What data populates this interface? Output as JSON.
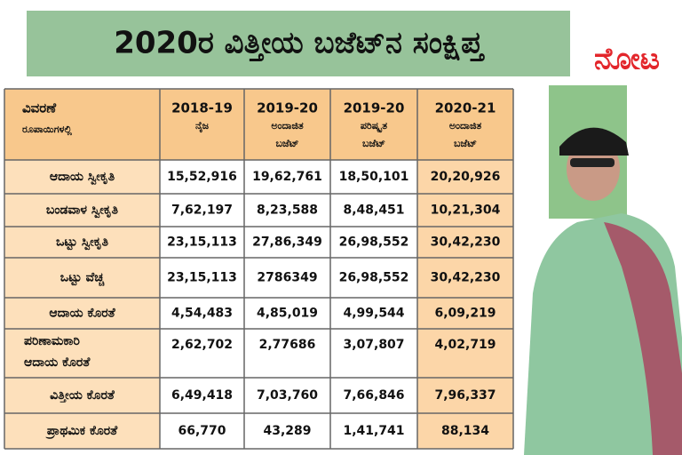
{
  "header": {
    "title": "2020ರ ವಿತ್ತೀಯ ಬಜೆಟ್‌ನ ಸಂಕ್ಷಿಪ್ತ",
    "logo": "ನೋಟ"
  },
  "table": {
    "columns": [
      {
        "lines": [
          "ವಿವರಣೆ",
          "ರೂಪಾಯಿಗಳಲ್ಲಿ"
        ]
      },
      {
        "lines": [
          "2018-19",
          "ನೈಜ"
        ]
      },
      {
        "lines": [
          "2019-20",
          "ಅಂದಾಜಿತ",
          "ಬಜೆಟ್"
        ]
      },
      {
        "lines": [
          "2019-20",
          "ಪರಿಷ್ಕೃತ",
          "ಬಜೆಟ್"
        ]
      },
      {
        "lines": [
          "2020-21",
          "ಅಂದಾಜಿತ",
          "ಬಜೆಟ್"
        ]
      }
    ],
    "rows": [
      {
        "label": [
          "ಆದಾಯ ಸ್ವೀಕೃತಿ"
        ],
        "values": [
          "15,52,916",
          "19,62,761",
          "18,50,101",
          "20,20,926"
        ]
      },
      {
        "label": [
          "ಬಂಡವಾಳ ಸ್ವೀಕೃತಿ"
        ],
        "values": [
          "7,62,197",
          "8,23,588",
          "8,48,451",
          "10,21,304"
        ]
      },
      {
        "label": [
          "ಒಟ್ಟು ಸ್ವೀಕೃತಿ"
        ],
        "values": [
          "23,15,113",
          "27,86,349",
          "26,98,552",
          "30,42,230"
        ]
      },
      {
        "label": [
          "ಒಟ್ಟು ವೆಚ್ಚ"
        ],
        "values": [
          "23,15,113",
          "2786349",
          "26,98,552",
          "30,42,230"
        ]
      },
      {
        "label": [
          "ಆದಾಯ ಕೊರತೆ"
        ],
        "values": [
          "4,54,483",
          "4,85,019",
          "4,99,544",
          "6,09,219"
        ]
      },
      {
        "label": [
          "ಪರಿಣಾಮಕಾರಿ",
          "ಆದಾಯ ಕೊರತೆ"
        ],
        "values": [
          "2,62,702",
          "2,77686",
          "3,07,807",
          "4,02,719"
        ]
      },
      {
        "label": [
          "ವಿತ್ತೀಯ ಕೊರತೆ"
        ],
        "values": [
          "6,49,418",
          "7,03,760",
          "7,66,846",
          "7,96,337"
        ]
      },
      {
        "label": [
          "ಪ್ರಾಥಮಿಕ ಕೊರತೆ"
        ],
        "values": [
          "66,770",
          "43,289",
          "1,41,741",
          "88,134"
        ]
      }
    ]
  }
}
